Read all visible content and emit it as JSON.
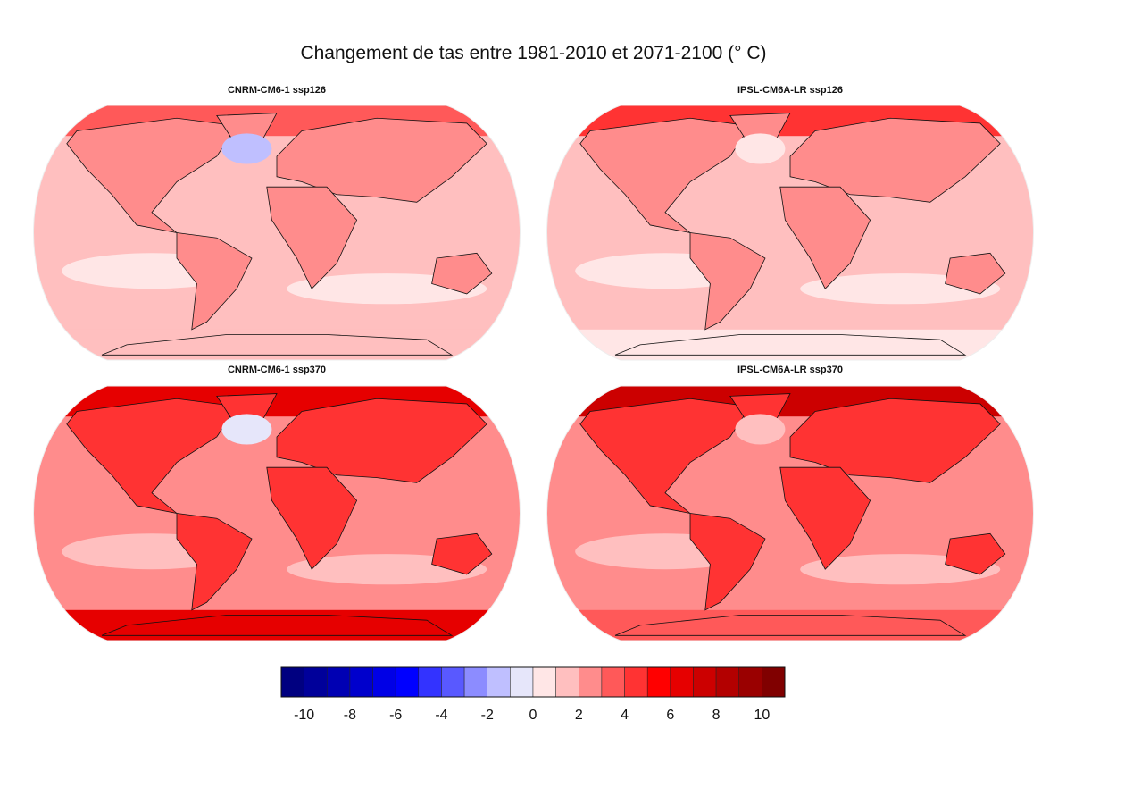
{
  "title": "Changement de tas entre 1981-2010 et 2071-2100 (° C)",
  "panels": [
    {
      "title": "CNRM-CM6-1 ssp126",
      "base": "#ffbfbf",
      "land": "#ff8c8c",
      "north": "#ff5959",
      "south": "#ffbfbf",
      "ocean_low": "#ffe6e6",
      "anomaly": "#bfbfff"
    },
    {
      "title": "IPSL-CM6A-LR ssp126",
      "base": "#ffbfbf",
      "land": "#ff8c8c",
      "north": "#ff3333",
      "south": "#ffe6e6",
      "ocean_low": "#ffe6e6",
      "anomaly": "#ffe6e6"
    },
    {
      "title": "CNRM-CM6-1 ssp370",
      "base": "#ff8c8c",
      "land": "#ff3333",
      "north": "#e60000",
      "south": "#e60000",
      "ocean_low": "#ffbfbf",
      "anomaly": "#e6e6fa"
    },
    {
      "title": "IPSL-CM6A-LR ssp370",
      "base": "#ff8c8c",
      "land": "#ff3333",
      "north": "#cc0000",
      "south": "#ff5959",
      "ocean_low": "#ffbfbf",
      "anomaly": "#ffbfbf"
    }
  ],
  "colorbar": {
    "range": [
      -11,
      11
    ],
    "step": 1,
    "colors": [
      "#000080",
      "#00009a",
      "#0000b3",
      "#0000cc",
      "#0000e6",
      "#0000ff",
      "#3333ff",
      "#5959ff",
      "#8c8cff",
      "#bfbfff",
      "#e6e6fa",
      "#ffe6e6",
      "#ffbfbf",
      "#ff8c8c",
      "#ff5959",
      "#ff3333",
      "#ff0000",
      "#e60000",
      "#cc0000",
      "#b30000",
      "#9a0000",
      "#800000"
    ],
    "ticks": [
      "-10",
      "-8",
      "-6",
      "-4",
      "-2",
      "0",
      "2",
      "4",
      "6",
      "8",
      "10"
    ]
  }
}
